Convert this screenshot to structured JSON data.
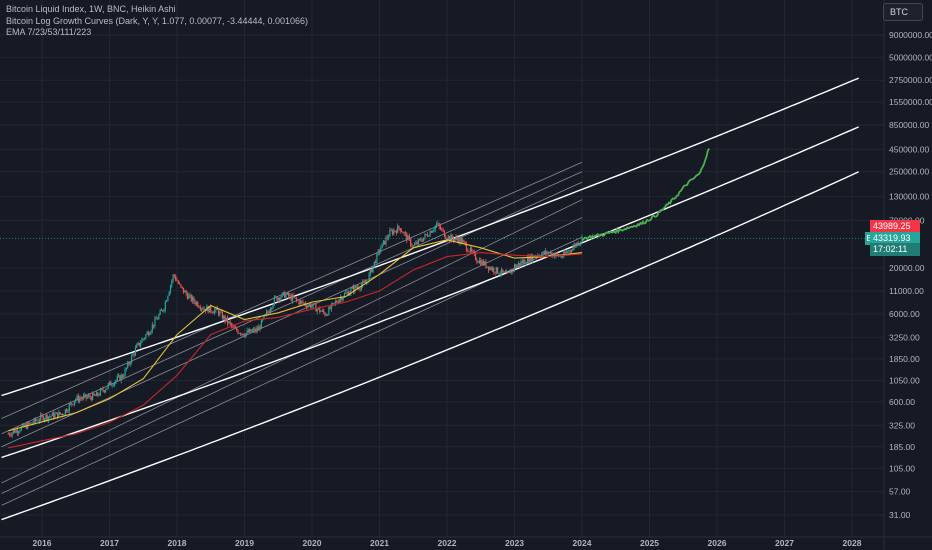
{
  "legend": {
    "line1": "Bitcoin Liquid Index, 1W, BNC, Heikin Ashi",
    "line2": "Bitcoin Log Growth Curves (Dark, Y, Y, 1.077, 0.00077, -3.44444, 0.001066)",
    "line3": "EMA 7/23/53/111/223"
  },
  "symbol_button": "BTC",
  "price_axis_labels": [
    "9000000.00",
    "5000000.00",
    "2750000.00",
    "1550000.00",
    "850000.00",
    "450000.00",
    "250000.00",
    "130000.00",
    "70000.00",
    "20000.00",
    "11000.00",
    "6000.00",
    "3250.00",
    "1850.00",
    "1050.00",
    "600.00",
    "325.00",
    "185.00",
    "105.00",
    "57.00",
    "31.00"
  ],
  "price_tags": {
    "red": "43989.25",
    "green": "43319.93",
    "symbol": "BLX",
    "countdown": "17:02:11"
  },
  "colors": {
    "background": "#161a25",
    "grid": "#232632",
    "band_major": "#ffffff",
    "band_minor": "#8a8d96",
    "candle_up": "#26a69a",
    "candle_down": "#ef5350",
    "projection": "#4caf50",
    "ema_yellow": "#e6c435",
    "ema_red": "#c62828",
    "ema_blue": "#4a90c8"
  },
  "chart_data": {
    "type": "line",
    "y_scale": "log",
    "ylim": [
      22,
      12000000
    ],
    "xlim": [
      "2015-07",
      "2028-04"
    ],
    "x_tick_labels": [
      "2016",
      "2017",
      "2018",
      "2019",
      "2020",
      "2021",
      "2022",
      "2023",
      "2024",
      "2025",
      "2026",
      "2027",
      "2028"
    ],
    "x_ticks": [
      2016,
      2017,
      2018,
      2019,
      2020,
      2021,
      2022,
      2023,
      2024,
      2025,
      2026,
      2027,
      2028
    ],
    "grid": true,
    "series": [
      {
        "kind": "price",
        "x": [
          2015.5,
          2015.8,
          2016.0,
          2016.3,
          2016.5,
          2016.8,
          2017.0,
          2017.2,
          2017.4,
          2017.6,
          2017.8,
          2017.95,
          2018.05,
          2018.2,
          2018.4,
          2018.6,
          2018.85,
          2019.0,
          2019.2,
          2019.45,
          2019.6,
          2019.85,
          2020.0,
          2020.2,
          2020.4,
          2020.6,
          2020.8,
          2021.0,
          2021.15,
          2021.3,
          2021.5,
          2021.7,
          2021.85,
          2022.0,
          2022.2,
          2022.45,
          2022.65,
          2022.9,
          2023.0,
          2023.3,
          2023.5,
          2023.7,
          2023.85,
          2024.0
        ],
        "y": [
          260,
          330,
          400,
          440,
          650,
          700,
          950,
          1200,
          2500,
          4000,
          7000,
          17000,
          12000,
          9000,
          7000,
          6500,
          4000,
          3600,
          4000,
          9000,
          10000,
          8000,
          7500,
          6000,
          9000,
          11500,
          13500,
          32000,
          50000,
          58000,
          35000,
          48000,
          63000,
          45000,
          42000,
          25000,
          20000,
          16500,
          21000,
          28000,
          30000,
          27000,
          34000,
          43320
        ]
      },
      {
        "kind": "projection",
        "x": [
          2024.0,
          2024.3,
          2024.6,
          2024.9,
          2025.1,
          2025.35,
          2025.55,
          2025.75,
          2025.9
        ],
        "y": [
          43320,
          48000,
          55000,
          65000,
          80000,
          120000,
          180000,
          240000,
          500000
        ]
      },
      {
        "kind": "ema",
        "color": "yellow",
        "x": [
          2015.5,
          2016.5,
          2017.0,
          2017.5,
          2018.0,
          2018.5,
          2019.0,
          2019.5,
          2020.0,
          2020.5,
          2021.0,
          2021.5,
          2022.0,
          2022.5,
          2023.0,
          2023.5,
          2024.0
        ],
        "y": [
          280,
          450,
          650,
          1100,
          3500,
          7500,
          5200,
          6200,
          8200,
          9500,
          17000,
          34000,
          42000,
          34000,
          26000,
          27000,
          30000
        ]
      },
      {
        "kind": "ema",
        "color": "red",
        "x": [
          2015.5,
          2016.5,
          2017.0,
          2017.5,
          2018.0,
          2018.5,
          2019.0,
          2019.5,
          2020.0,
          2020.5,
          2021.0,
          2021.5,
          2022.0,
          2022.5,
          2023.0,
          2023.5,
          2024.0
        ],
        "y": [
          180,
          260,
          350,
          550,
          1200,
          3500,
          5000,
          5500,
          6800,
          8200,
          11000,
          19000,
          27000,
          30000,
          28000,
          27000,
          29000
        ]
      }
    ],
    "growth_bands": [
      {
        "role": "upper",
        "y_2016": 1000,
        "y_2028": 2700000
      },
      {
        "role": "middle",
        "y_2016": 200,
        "y_2028": 750000
      },
      {
        "role": "lower",
        "y_2016": 40,
        "y_2028": 230000
      }
    ]
  }
}
